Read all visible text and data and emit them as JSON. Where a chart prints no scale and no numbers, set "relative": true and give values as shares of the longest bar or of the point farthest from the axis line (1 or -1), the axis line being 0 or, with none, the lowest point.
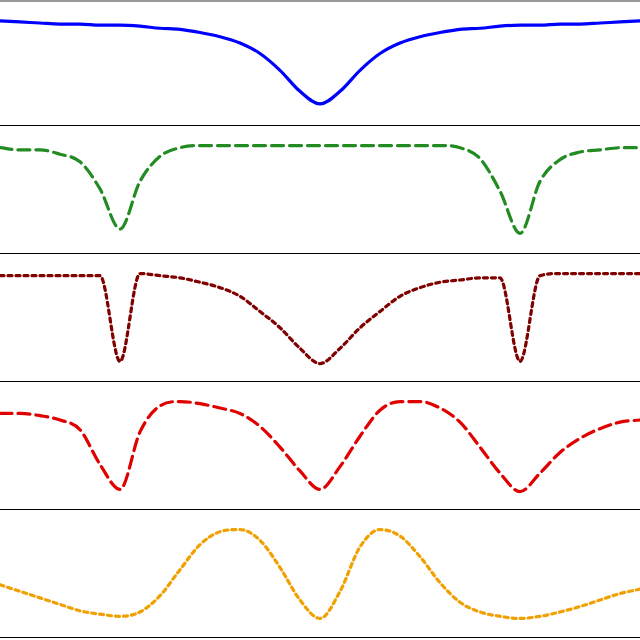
{
  "chart_data": [
    {
      "type": "line",
      "relative": true,
      "line_style": "solid",
      "categories": [
        null,
        null,
        null,
        null,
        null,
        null,
        null,
        null,
        null,
        null,
        null,
        null,
        null,
        null,
        null,
        null,
        null,
        null,
        null,
        null,
        null,
        null,
        null,
        null,
        null,
        null,
        null,
        null,
        null,
        null,
        null,
        null,
        null
      ],
      "series": [
        {
          "color": "#0000ff",
          "values": [
            1,
            0.99,
            0.98,
            0.97,
            0.97,
            0.96,
            0.96,
            0.95,
            0.93,
            0.92,
            0.89,
            0.85,
            0.79,
            0.69,
            0.53,
            0.33,
            0.21,
            0.33,
            0.53,
            0.69,
            0.79,
            0.85,
            0.89,
            0.92,
            0.93,
            0.95,
            0.96,
            0.96,
            0.97,
            0.97,
            0.98,
            0.99,
            1
          ]
        }
      ]
    },
    {
      "type": "line",
      "relative": true,
      "line_style": "dashed",
      "categories": [
        null,
        null,
        null,
        null,
        null,
        null,
        null,
        null,
        null,
        null,
        null,
        null,
        null,
        null,
        null,
        null,
        null,
        null,
        null,
        null,
        null,
        null,
        null,
        null,
        null,
        null,
        null,
        null,
        null,
        null,
        null,
        null,
        null
      ],
      "series": [
        {
          "color": "#228b22",
          "values": [
            0.98,
            0.96,
            0.96,
            0.92,
            0.85,
            0.6,
            0.23,
            0.67,
            0.9,
            0.98,
            1,
            1,
            1,
            1,
            1,
            1,
            1,
            1,
            1,
            1,
            1,
            1,
            1,
            0.98,
            0.88,
            0.58,
            0.19,
            0.67,
            0.87,
            0.94,
            0.96,
            0.98,
            0.98
          ]
        }
      ]
    },
    {
      "type": "line",
      "relative": true,
      "line_style": "dotted",
      "categories": [
        null,
        null,
        null,
        null,
        null,
        null,
        null,
        null,
        null,
        null,
        null,
        null,
        null,
        null,
        null,
        null,
        null,
        null,
        null,
        null,
        null,
        null,
        null,
        null,
        null,
        null,
        null,
        null,
        null,
        null,
        null,
        null,
        null
      ],
      "series": [
        {
          "color": "#800000",
          "values": [
            0.98,
            0.98,
            0.98,
            0.98,
            0.98,
            0.98,
            0.19,
            1,
            0.98,
            0.96,
            0.92,
            0.87,
            0.79,
            0.65,
            0.5,
            0.31,
            0.17,
            0.31,
            0.5,
            0.65,
            0.79,
            0.87,
            0.92,
            0.94,
            0.96,
            0.96,
            0.19,
            0.98,
            1,
            1,
            1,
            1,
            1
          ]
        }
      ]
    },
    {
      "type": "line",
      "relative": true,
      "line_style": "dashed",
      "categories": [
        null,
        null,
        null,
        null,
        null,
        null,
        null,
        null,
        null,
        null,
        null,
        null,
        null,
        null,
        null,
        null,
        null,
        null,
        null,
        null,
        null,
        null,
        null,
        null,
        null,
        null,
        null,
        null,
        null,
        null,
        null,
        null,
        null
      ],
      "series": [
        {
          "color": "#e00000",
          "values": [
            0.89,
            0.89,
            0.87,
            0.83,
            0.74,
            0.42,
            0.19,
            0.72,
            0.96,
            1,
            0.98,
            0.94,
            0.89,
            0.77,
            0.58,
            0.36,
            0.19,
            0.4,
            0.68,
            0.92,
            1,
            1,
            0.94,
            0.81,
            0.58,
            0.34,
            0.17,
            0.34,
            0.53,
            0.66,
            0.75,
            0.81,
            0.83
          ]
        }
      ]
    },
    {
      "type": "line",
      "relative": true,
      "line_style": "dotted",
      "categories": [
        null,
        null,
        null,
        null,
        null,
        null,
        null,
        null,
        null,
        null,
        null,
        null,
        null,
        null,
        null,
        null,
        null,
        null,
        null,
        null,
        null,
        null,
        null,
        null,
        null,
        null,
        null,
        null,
        null,
        null,
        null,
        null,
        null
      ],
      "series": [
        {
          "color": "#f0a000",
          "values": [
            0.49,
            0.43,
            0.37,
            0.31,
            0.25,
            0.22,
            0.2,
            0.24,
            0.39,
            0.63,
            0.86,
            0.98,
            1,
            0.9,
            0.65,
            0.35,
            0.18,
            0.43,
            0.84,
            1,
            0.94,
            0.75,
            0.51,
            0.33,
            0.24,
            0.2,
            0.18,
            0.2,
            0.24,
            0.29,
            0.35,
            0.41,
            0.45
          ]
        }
      ]
    }
  ]
}
